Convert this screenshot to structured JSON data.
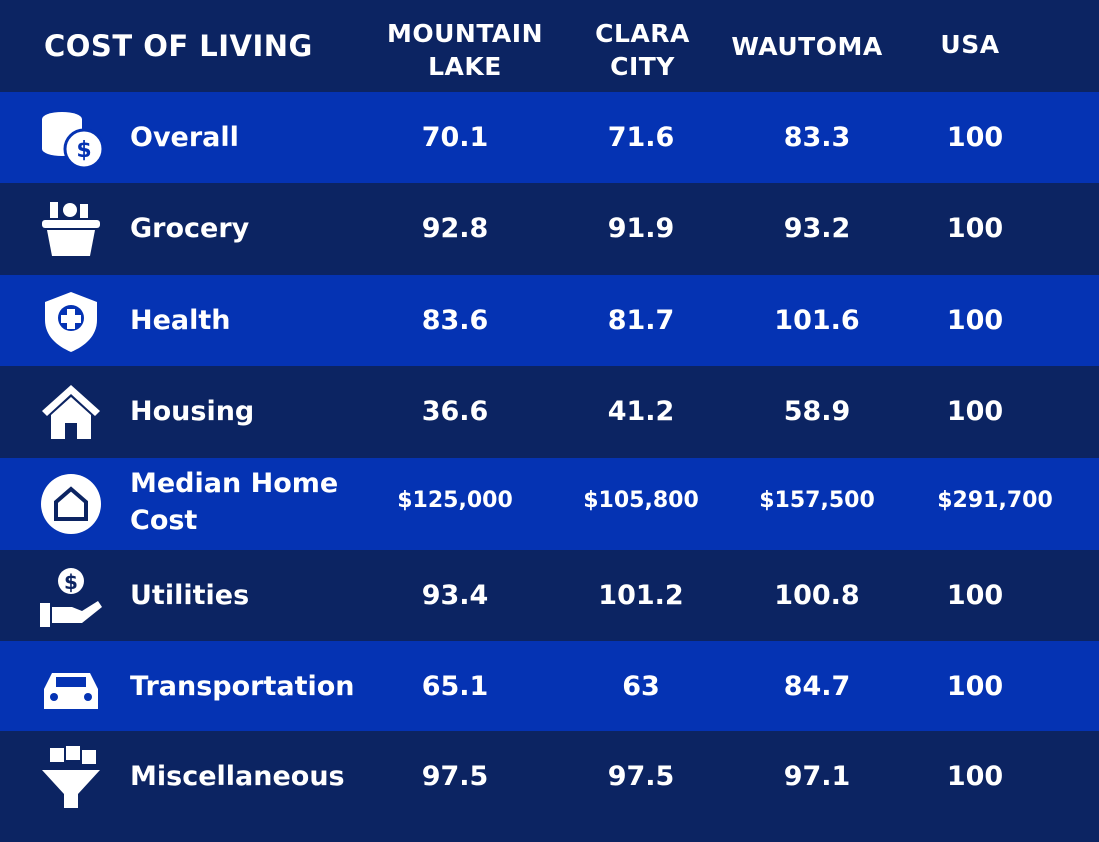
{
  "table": {
    "title": "COST OF LIVING",
    "columns": [
      "MOUNTAIN LAKE",
      "CLARA CITY",
      "WAUTOMA",
      "USA"
    ],
    "rows": [
      [
        "Overall",
        "70.1",
        "71.6",
        "83.3",
        "100"
      ],
      [
        "Grocery",
        "92.8",
        "91.9",
        "93.2",
        "100"
      ],
      [
        "Health",
        "83.6",
        "81.7",
        "101.6",
        "100"
      ],
      [
        "Housing",
        "36.6",
        "41.2",
        "58.9",
        "100"
      ],
      [
        "Median Home Cost",
        "$125,000",
        "$105,800",
        "$157,500",
        "$291,700"
      ],
      [
        "Utilities",
        "93.4",
        "101.2",
        "100.8",
        "100"
      ],
      [
        "Transportation",
        "65.1",
        "63",
        "84.7",
        "100"
      ],
      [
        "Miscellaneous",
        "97.5",
        "97.5",
        "97.1",
        "100"
      ]
    ]
  }
}
